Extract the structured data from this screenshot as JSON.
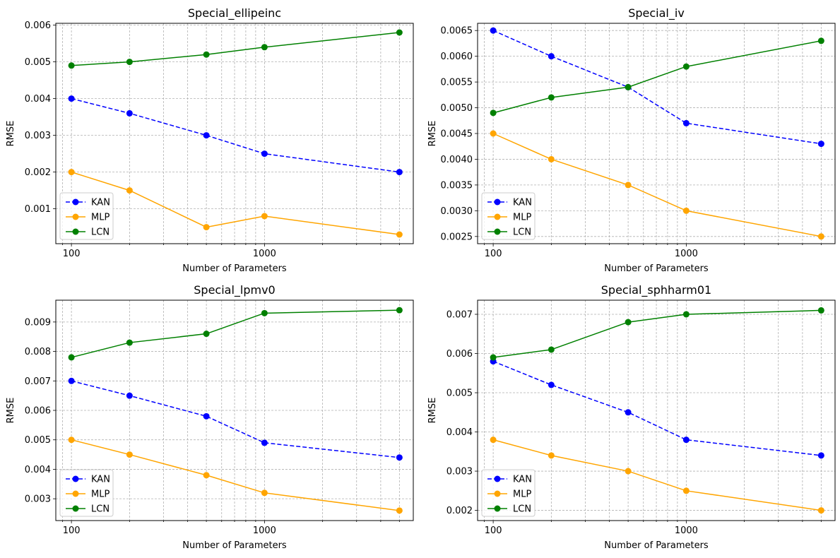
{
  "chart_data": [
    {
      "type": "line",
      "title": "Special_ellipeinc",
      "xlabel": "Number of Parameters",
      "ylabel": "RMSE",
      "xscale": "log",
      "xlim": [
        83,
        5900
      ],
      "ylim": [
        5e-05,
        0.00605
      ],
      "xticks": [
        100,
        1000
      ],
      "xticklabels": [
        "100",
        "1000"
      ],
      "yticks": [
        0.001,
        0.002,
        0.003,
        0.004,
        0.005,
        0.006
      ],
      "yticklabels": [
        "0.001",
        "0.002",
        "0.003",
        "0.004",
        "0.005",
        "0.006"
      ],
      "x": [
        100,
        200,
        500,
        1000,
        5000
      ],
      "series": [
        {
          "name": "KAN",
          "color": "#0000ff",
          "dashed": true,
          "values": [
            0.004,
            0.0036,
            0.003,
            0.0025,
            0.002
          ]
        },
        {
          "name": "MLP",
          "color": "#ffa500",
          "dashed": false,
          "values": [
            0.002,
            0.0015,
            0.0005,
            0.0008,
            0.0003
          ]
        },
        {
          "name": "LCN",
          "color": "#008000",
          "dashed": false,
          "values": [
            0.0049,
            0.005,
            0.0052,
            0.0054,
            0.0058
          ]
        }
      ],
      "legend": "lower-left",
      "grid": true
    },
    {
      "type": "line",
      "title": "Special_iv",
      "xlabel": "Number of Parameters",
      "ylabel": "RMSE",
      "xscale": "log",
      "xlim": [
        83,
        5900
      ],
      "ylim": [
        0.00236,
        0.00664
      ],
      "xticks": [
        100,
        1000
      ],
      "xticklabels": [
        "100",
        "1000"
      ],
      "yticks": [
        0.0025,
        0.003,
        0.0035,
        0.004,
        0.0045,
        0.005,
        0.0055,
        0.006,
        0.0065
      ],
      "yticklabels": [
        "0.0025",
        "0.0030",
        "0.0035",
        "0.0040",
        "0.0045",
        "0.0050",
        "0.0055",
        "0.0060",
        "0.0065"
      ],
      "x": [
        100,
        200,
        500,
        1000,
        5000
      ],
      "series": [
        {
          "name": "KAN",
          "color": "#0000ff",
          "dashed": true,
          "values": [
            0.0065,
            0.006,
            0.0054,
            0.0047,
            0.0043
          ]
        },
        {
          "name": "MLP",
          "color": "#ffa500",
          "dashed": false,
          "values": [
            0.0045,
            0.004,
            0.0035,
            0.003,
            0.0025
          ]
        },
        {
          "name": "LCN",
          "color": "#008000",
          "dashed": false,
          "values": [
            0.0049,
            0.0052,
            0.0054,
            0.0058,
            0.0063
          ]
        }
      ],
      "legend": "lower-left",
      "grid": true
    },
    {
      "type": "line",
      "title": "Special_lpmv0",
      "xlabel": "Number of Parameters",
      "ylabel": "RMSE",
      "xscale": "log",
      "xlim": [
        83,
        5900
      ],
      "ylim": [
        0.00226,
        0.00974
      ],
      "xticks": [
        100,
        1000
      ],
      "xticklabels": [
        "100",
        "1000"
      ],
      "yticks": [
        0.003,
        0.004,
        0.005,
        0.006,
        0.007,
        0.008,
        0.009
      ],
      "yticklabels": [
        "0.003",
        "0.004",
        "0.005",
        "0.006",
        "0.007",
        "0.008",
        "0.009"
      ],
      "x": [
        100,
        200,
        500,
        1000,
        5000
      ],
      "series": [
        {
          "name": "KAN",
          "color": "#0000ff",
          "dashed": true,
          "values": [
            0.007,
            0.0065,
            0.0058,
            0.0049,
            0.0044
          ]
        },
        {
          "name": "MLP",
          "color": "#ffa500",
          "dashed": false,
          "values": [
            0.005,
            0.0045,
            0.0038,
            0.0032,
            0.0026
          ]
        },
        {
          "name": "LCN",
          "color": "#008000",
          "dashed": false,
          "values": [
            0.0078,
            0.0083,
            0.0086,
            0.0093,
            0.0094
          ]
        }
      ],
      "legend": "lower-left",
      "grid": true
    },
    {
      "type": "line",
      "title": "Special_sphharm01",
      "xlabel": "Number of Parameters",
      "ylabel": "RMSE",
      "xscale": "log",
      "xlim": [
        83,
        5900
      ],
      "ylim": [
        0.00174,
        0.00736
      ],
      "xticks": [
        100,
        1000
      ],
      "xticklabels": [
        "100",
        "1000"
      ],
      "yticks": [
        0.002,
        0.003,
        0.004,
        0.005,
        0.006,
        0.007
      ],
      "yticklabels": [
        "0.002",
        "0.003",
        "0.004",
        "0.005",
        "0.006",
        "0.007"
      ],
      "x": [
        100,
        200,
        500,
        1000,
        5000
      ],
      "series": [
        {
          "name": "KAN",
          "color": "#0000ff",
          "dashed": true,
          "values": [
            0.0058,
            0.0052,
            0.0045,
            0.0038,
            0.0034
          ]
        },
        {
          "name": "MLP",
          "color": "#ffa500",
          "dashed": false,
          "values": [
            0.0038,
            0.0034,
            0.003,
            0.0025,
            0.002
          ]
        },
        {
          "name": "LCN",
          "color": "#008000",
          "dashed": false,
          "values": [
            0.0059,
            0.0061,
            0.0068,
            0.007,
            0.0071
          ]
        }
      ],
      "legend": "lower-left",
      "grid": true
    }
  ]
}
